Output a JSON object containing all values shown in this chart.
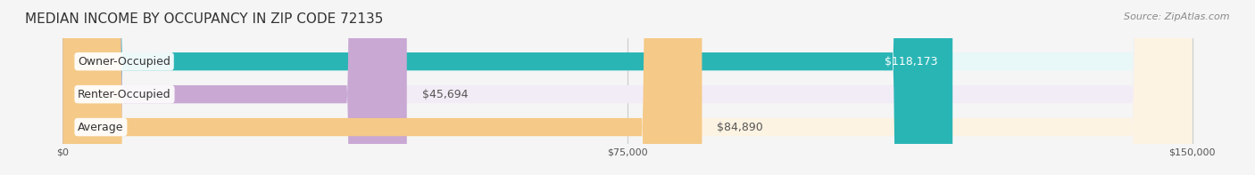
{
  "title": "MEDIAN INCOME BY OCCUPANCY IN ZIP CODE 72135",
  "source": "Source: ZipAtlas.com",
  "categories": [
    "Owner-Occupied",
    "Renter-Occupied",
    "Average"
  ],
  "values": [
    118173,
    45694,
    84890
  ],
  "labels": [
    "$118,173",
    "$45,694",
    "$84,890"
  ],
  "bar_colors": [
    "#2ab5b5",
    "#c9a8d4",
    "#f5c987"
  ],
  "bar_bg_colors": [
    "#e8f7f7",
    "#f2ecf6",
    "#fdf3e3"
  ],
  "xlim": [
    0,
    150000
  ],
  "xticks": [
    0,
    75000,
    150000
  ],
  "xticklabels": [
    "$0",
    "$75,000",
    "$150,000"
  ],
  "title_fontsize": 11,
  "source_fontsize": 8,
  "label_fontsize": 9,
  "bar_height": 0.55,
  "figsize": [
    14.06,
    1.97
  ],
  "dpi": 100,
  "background_color": "#f5f5f5"
}
